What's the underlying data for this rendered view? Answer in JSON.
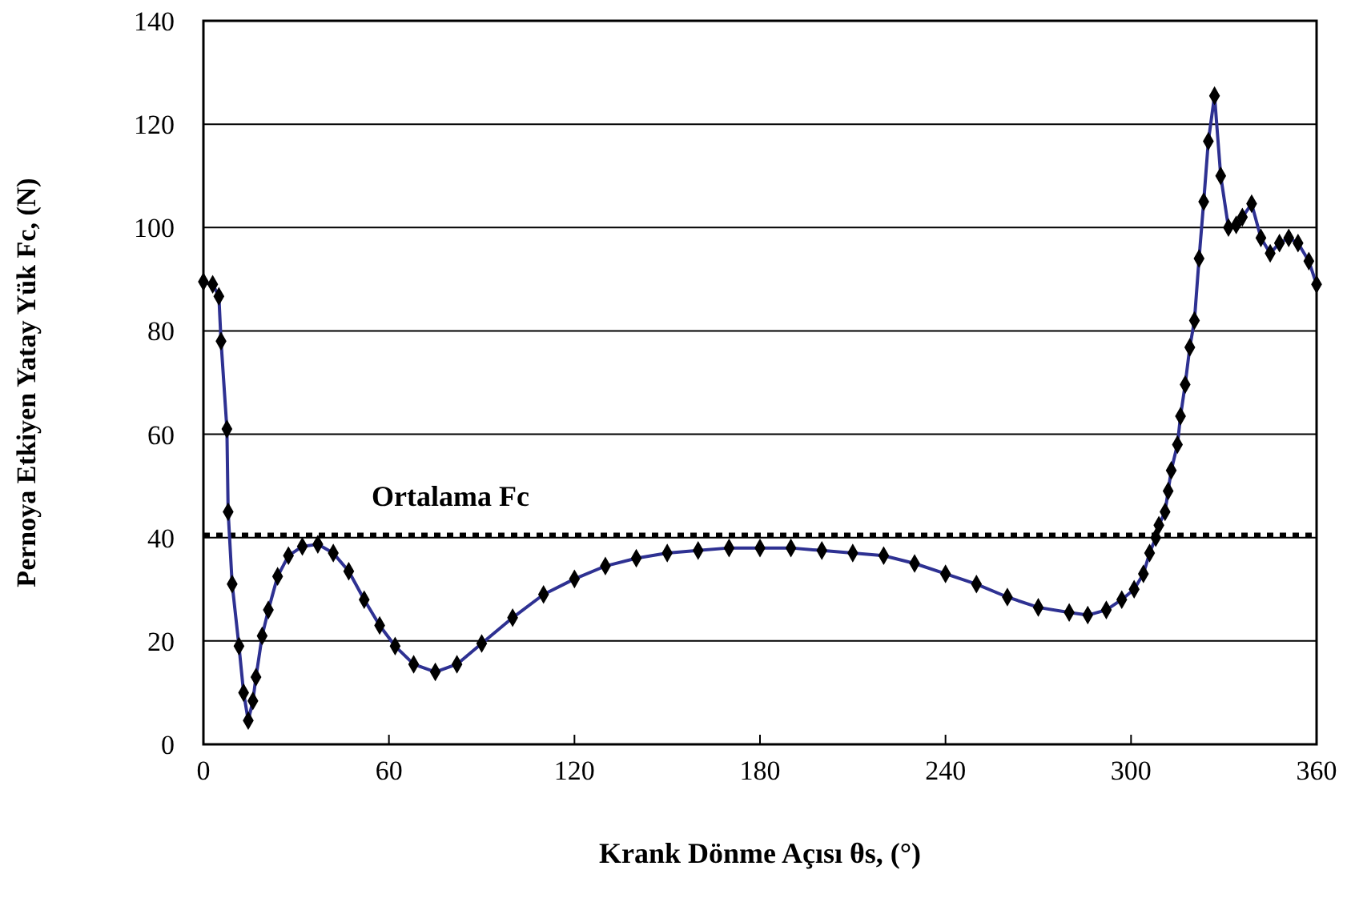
{
  "chart_data": {
    "type": "line",
    "xlabel": "Krank Dönme Açısı θs, (°)",
    "ylabel": "Pernoya Etkiyen Yatay Yük  Fc, (N)",
    "series": [
      {
        "color": "#2e3192",
        "x": [
          0,
          3,
          5,
          5.7,
          7.6,
          8,
          9.3,
          11.5,
          13,
          14.5,
          16,
          17,
          19,
          21,
          24,
          27.5,
          32,
          37,
          42,
          47,
          52,
          57,
          62,
          68,
          75,
          82,
          90,
          100,
          110,
          120,
          130,
          140,
          150,
          160,
          170,
          180,
          190,
          200,
          210,
          220,
          230,
          240,
          250,
          260,
          270,
          280,
          286,
          292,
          297,
          301,
          304,
          306,
          308,
          309,
          311,
          312,
          313,
          315,
          316,
          317.5,
          319,
          320.5,
          322,
          323.5,
          325,
          327,
          329,
          331.5,
          334,
          336,
          339,
          342,
          345,
          348,
          351,
          354,
          357.5,
          360
        ],
        "values": [
          89.5,
          89,
          86.7,
          78,
          61,
          45,
          31,
          19,
          10,
          4.6,
          8.4,
          13,
          21,
          26,
          32.5,
          36.5,
          38.3,
          38.7,
          37,
          33.5,
          28,
          23,
          19,
          15.5,
          14,
          15.5,
          19.5,
          24.5,
          29,
          32,
          34.5,
          36,
          37,
          37.5,
          38,
          38,
          38,
          37.5,
          37,
          36.5,
          35,
          33,
          31,
          28.5,
          26.5,
          25.5,
          25,
          26,
          28,
          30,
          33,
          37,
          40,
          42.4,
          45,
          49,
          53,
          58,
          63.5,
          69.6,
          76.8,
          82,
          94,
          105,
          116.7,
          125.5,
          110,
          100,
          100.5,
          102,
          104.6,
          98,
          95,
          97,
          98,
          97,
          93.5,
          89
        ]
      }
    ],
    "xlim": [
      0,
      360
    ],
    "xticks": [
      0,
      60,
      120,
      180,
      240,
      300,
      360
    ],
    "ylim": [
      0,
      140
    ],
    "yticks": [
      0,
      20,
      40,
      60,
      80,
      100,
      120,
      140
    ],
    "grid": "y",
    "marker": "diamond",
    "line_style": "solid",
    "ref_lines": [
      {
        "axis": "y",
        "value": 40.5,
        "label": "Ortalama Fc",
        "color": "#000000",
        "line_style": "dotted"
      }
    ]
  }
}
